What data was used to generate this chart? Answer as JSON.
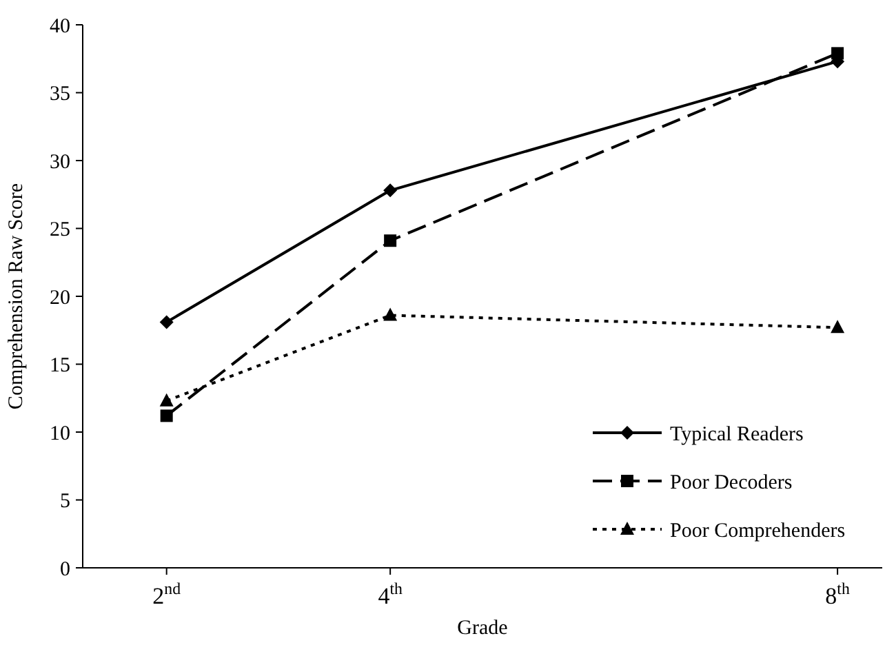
{
  "chart_data": {
    "type": "line",
    "xlabel": "Grade",
    "ylabel": "Comprehension Raw Score",
    "x": [
      2,
      4,
      8
    ],
    "xlim": [
      1.25,
      8.4
    ],
    "xticks": [
      {
        "value": 2,
        "label": "2$^{nd}$"
      },
      {
        "value": 4,
        "label": "4$^{th}$"
      },
      {
        "value": 8,
        "label": "8$^{th}$"
      }
    ],
    "ylim": [
      0,
      40
    ],
    "yticks": [
      0,
      5,
      10,
      15,
      20,
      25,
      30,
      35,
      40
    ],
    "grid": false,
    "legend": "bottom right",
    "series": [
      {
        "name": "Typical Readers",
        "color": "#000000",
        "values": [
          18.1,
          27.8,
          37.3
        ],
        "marker": "diamond",
        "line_style": "solid"
      },
      {
        "name": "Poor Decoders",
        "color": "#000000",
        "values": [
          11.2,
          24.1,
          37.9
        ],
        "marker": "square",
        "line_style": "dashed"
      },
      {
        "name": "Poor Comprehenders",
        "color": "#000000",
        "values": [
          12.3,
          18.6,
          17.7
        ],
        "marker": "triangle",
        "line_style": "dotted"
      }
    ]
  }
}
